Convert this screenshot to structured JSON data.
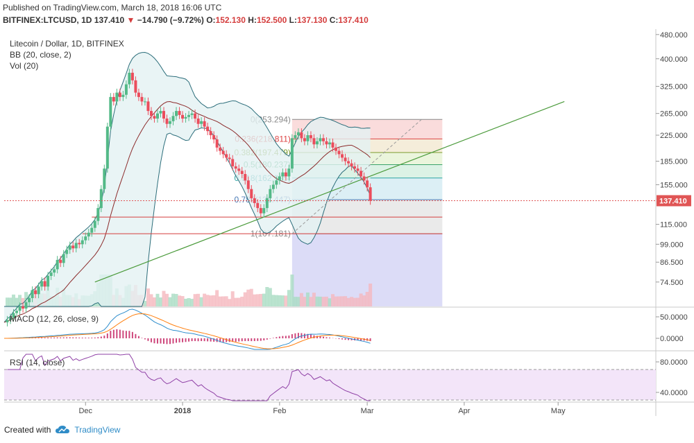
{
  "header": {
    "published": "Published on TradingView.com, March 18, 2018 16:06 UTC",
    "symbol": "BITFINEX:LTCUSD, 1D",
    "last": "137.410",
    "change": "−14.790 (−9.72%)",
    "o_label": "O:",
    "o_value": "152.130",
    "h_label": "H:",
    "h_value": "152.500",
    "l_label": "L:",
    "l_value": "137.130",
    "c_label": "C:",
    "c_value": "137.410"
  },
  "legend": {
    "title": "Litecoin / Dollar, 1D, BITFINEX",
    "bb": "BB (20, close, 2)",
    "vol": "Vol (20)",
    "macd": "MACD (12, 26, close, 9)",
    "rsi": "RSI (14, close)"
  },
  "colors": {
    "up": "#53b987",
    "down": "#eb4d5c",
    "bb_fill": "#e3f1f3",
    "bb_line": "#2b6d7a",
    "trend": "#4a9a3a",
    "sma": "#8b2a2a",
    "macd": "#2b8ccc",
    "signal": "#ff7f0e",
    "rsi": "#8e3fa5",
    "rsi_band": "#f3e5f9",
    "price_line": "#e05555"
  },
  "chart_data": {
    "type": "candlestick",
    "price_axis": {
      "ticks": [
        480,
        400,
        325,
        265,
        225,
        185,
        155,
        115,
        99,
        86.5,
        74.5
      ],
      "tick_labels": [
        "480.000",
        "400.000",
        "325.000",
        "265.000",
        "225.000",
        "185.000",
        "155.000",
        "115.000",
        "99.000",
        "86.500",
        "74.500"
      ],
      "scale": "log"
    },
    "last_price_label": "137.410",
    "x_axis_labels": [
      "Dec",
      "2018",
      "Feb",
      "Mar",
      "Apr",
      "May"
    ],
    "x_axis_dates": [
      "2017-12-01",
      "2018-01-01",
      "2018-02-01",
      "2018-03-01",
      "2018-04-01",
      "2018-05-01"
    ],
    "price_series": {
      "start_date": "2017-11-05",
      "close": [
        55,
        56,
        57,
        59,
        60,
        62,
        61,
        64,
        66,
        70,
        68,
        72,
        75,
        72,
        78,
        80,
        82,
        88,
        86,
        92,
        95,
        98,
        96,
        100,
        99,
        102,
        105,
        108,
        112,
        118,
        130,
        150,
        175,
        240,
        300,
        290,
        310,
        300,
        305,
        330,
        360,
        340,
        310,
        300,
        290,
        290,
        270,
        260,
        255,
        265,
        270,
        255,
        245,
        250,
        260,
        270,
        262,
        255,
        258,
        262,
        265,
        255,
        245,
        250,
        240,
        232,
        225,
        218,
        205,
        200,
        195,
        190,
        188,
        178,
        175,
        172,
        168,
        160,
        150,
        140,
        135,
        130,
        125,
        130,
        140,
        150,
        155,
        160,
        165,
        170,
        165,
        175,
        220,
        225,
        230,
        220,
        215,
        225,
        220,
        210,
        215,
        220,
        215,
        210,
        213,
        205,
        200,
        195,
        190,
        185,
        182,
        178,
        175,
        172,
        165,
        160,
        152,
        137.41
      ]
    },
    "fibonacci": {
      "levels": [
        {
          "ratio": 0,
          "label": "0(253.294)",
          "price": 253.294
        },
        {
          "ratio": 0.236,
          "label": "0.236(218.811)",
          "price": 218.811
        },
        {
          "ratio": 0.382,
          "label": "0.382(197.479)",
          "price": 197.479
        },
        {
          "ratio": 0.5,
          "label": "0.5(180.237)",
          "price": 180.237
        },
        {
          "ratio": 0.618,
          "label": "0.618(162.995)",
          "price": 162.995
        },
        {
          "ratio": 0.786,
          "label": "0.786(138.447)",
          "price": 138.447
        },
        {
          "ratio": 1,
          "label": "1(107.181)",
          "price": 107.181
        }
      ],
      "colors": [
        "#f9d6d6",
        "#f3ead3",
        "#e8f3d6",
        "#d6f0e0",
        "#d6ecf3",
        "#e6e6e6",
        "#d8d8f6"
      ]
    },
    "horizontal_lines": [
      {
        "price": 121.5,
        "from": "2017-12-03",
        "to": "2018-03-25"
      },
      {
        "price": 107.2,
        "from": "2017-11-30",
        "to": "2018-03-25"
      }
    ],
    "trendline": {
      "from": {
        "date": "2017-12-04",
        "price": 74.5
      },
      "to": {
        "date": "2018-05-03",
        "price": 290
      }
    },
    "macd_axis": {
      "ticks": [
        50,
        0
      ],
      "tick_labels": [
        "50.0000",
        "0.0000"
      ]
    },
    "rsi_axis": {
      "ticks": [
        80,
        40
      ],
      "tick_labels": [
        "80.0000",
        "40.0000"
      ],
      "band": [
        30,
        70
      ]
    }
  },
  "footer": {
    "created_with": "Created with",
    "brand": "TradingView"
  }
}
